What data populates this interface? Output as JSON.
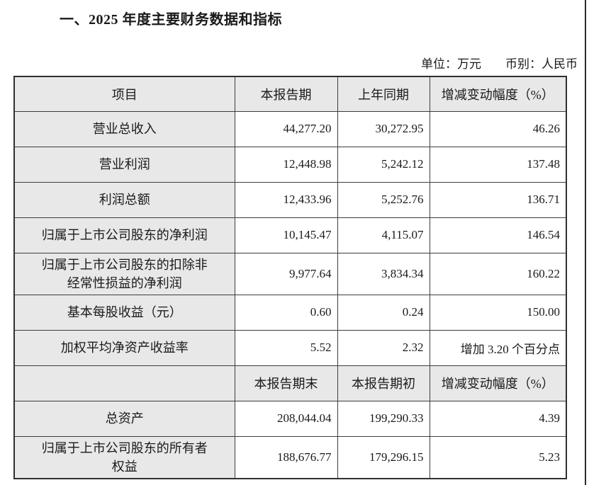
{
  "page": {
    "title": "一、2025 年度主要财务数据和指标",
    "unit_label": "单位：万元",
    "currency_label": "币别：人民币"
  },
  "colors": {
    "header_bg": "#e8e8e8",
    "border": "#3d3d3d",
    "text": "#1a1a1a"
  },
  "table": {
    "columns": [
      "项目",
      "本报告期",
      "上年同期",
      "增减变动幅度（%）"
    ],
    "rows": [
      {
        "type": "data",
        "cells": [
          "营业总收入",
          "44,277.20",
          "30,272.95",
          "46.26"
        ]
      },
      {
        "type": "data",
        "cells": [
          "营业利润",
          "12,448.98",
          "5,242.12",
          "137.48"
        ]
      },
      {
        "type": "data",
        "cells": [
          "利润总额",
          "12,433.96",
          "5,252.76",
          "136.71"
        ]
      },
      {
        "type": "data",
        "cells": [
          "归属于上市公司股东的净利润",
          "10,145.47",
          "4,115.07",
          "146.54"
        ]
      },
      {
        "type": "data",
        "cells": [
          "归属于上市公司股东的扣除非\n经常性损益的净利润",
          "9,977.64",
          "3,834.34",
          "160.22"
        ]
      },
      {
        "type": "data",
        "cells": [
          "基本每股收益（元）",
          "0.60",
          "0.24",
          "150.00"
        ]
      },
      {
        "type": "data",
        "cells": [
          "加权平均净资产收益率",
          "5.52",
          "2.32",
          "增加 3.20 个百分点"
        ]
      },
      {
        "type": "subheader",
        "cells": [
          "",
          "本报告期末",
          "本报告期初",
          "增减变动幅度（%）"
        ]
      },
      {
        "type": "data",
        "cells": [
          "总资产",
          "208,044.04",
          "199,290.33",
          "4.39"
        ]
      },
      {
        "type": "data",
        "cells": [
          "归属于上市公司股东的所有者\n权益",
          "188,676.77",
          "179,296.15",
          "5.23"
        ]
      }
    ]
  }
}
